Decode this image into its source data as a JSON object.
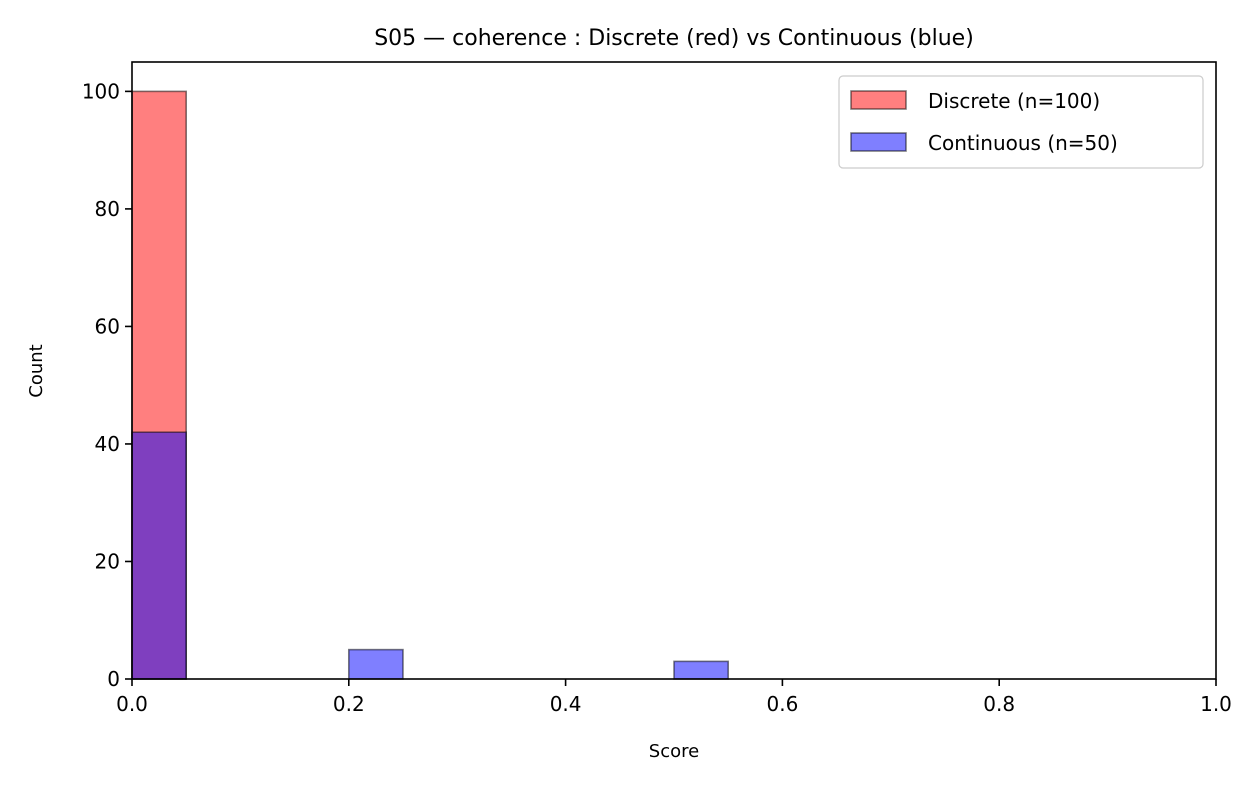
{
  "chart_data": {
    "type": "bar",
    "title": "S05 — coherence : Discrete (red) vs Continuous (blue)",
    "xlabel": "Score",
    "ylabel": "Count",
    "xlim": [
      0,
      1
    ],
    "ylim": [
      0,
      105
    ],
    "xticks": [
      "0.0",
      "0.2",
      "0.4",
      "0.6",
      "0.8",
      "1.0"
    ],
    "yticks": [
      "0",
      "20",
      "40",
      "60",
      "80",
      "100"
    ],
    "grid": false,
    "legend_position": "top-right",
    "series": [
      {
        "name": "Discrete (n=100)",
        "color": "#ff0000",
        "bins": [
          {
            "x0": 0.0,
            "x1": 0.05,
            "count": 100
          }
        ]
      },
      {
        "name": "Continuous (n=50)",
        "color": "#0000ff",
        "bins": [
          {
            "x0": 0.0,
            "x1": 0.05,
            "count": 42
          },
          {
            "x0": 0.2,
            "x1": 0.25,
            "count": 5
          },
          {
            "x0": 0.5,
            "x1": 0.55,
            "count": 3
          }
        ]
      }
    ]
  }
}
